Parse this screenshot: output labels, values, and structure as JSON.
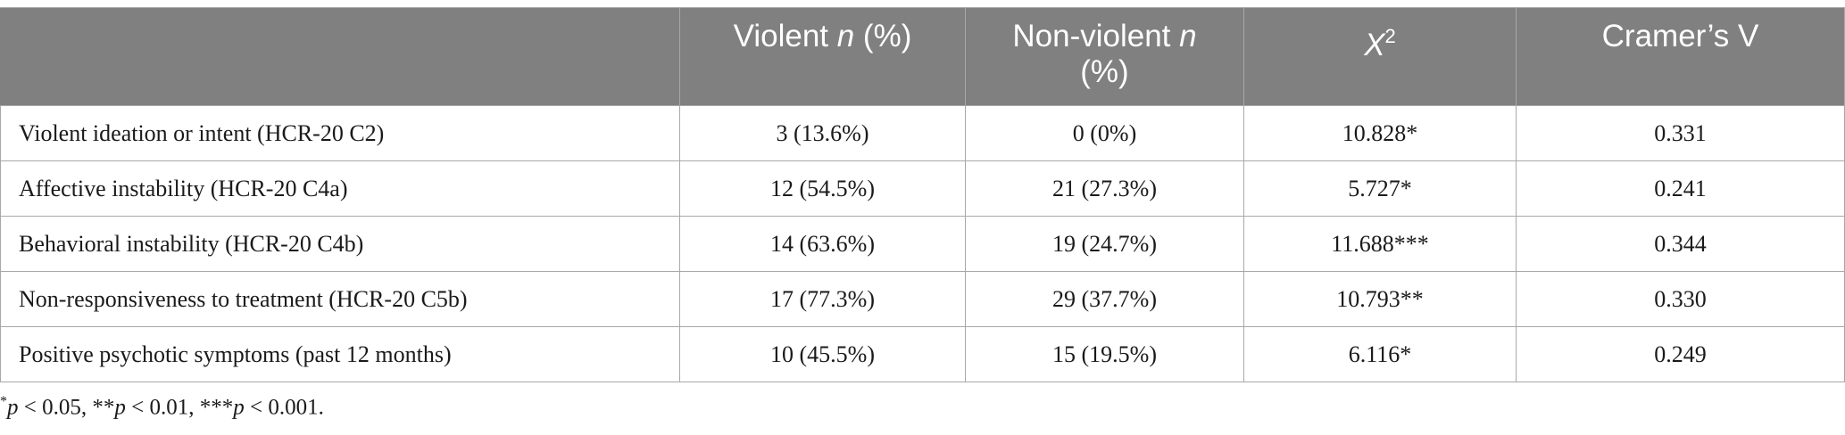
{
  "table": {
    "headers": {
      "variable": "",
      "violent_prefix": "Violent ",
      "violent_n": "n",
      "violent_suffix": " (%)",
      "nonviolent_prefix": "Non-violent ",
      "nonviolent_n": "n",
      "nonviolent_suffix": "(%)",
      "chi_symbol": "X",
      "chi_exponent": "2",
      "cramers": "Cramer’s V"
    },
    "rows": [
      {
        "label": "Violent ideation or intent (HCR-20 C2)",
        "violent": "3 (13.6%)",
        "nonviolent": "0 (0%)",
        "chi2": "10.828*",
        "cramers_v": "0.331"
      },
      {
        "label": "Affective instability (HCR-20 C4a)",
        "violent": "12 (54.5%)",
        "nonviolent": "21 (27.3%)",
        "chi2": "5.727*",
        "cramers_v": "0.241"
      },
      {
        "label": "Behavioral instability (HCR-20 C4b)",
        "violent": "14 (63.6%)",
        "nonviolent": "19 (24.7%)",
        "chi2": "11.688***",
        "cramers_v": "0.344"
      },
      {
        "label": "Non-responsiveness to treatment (HCR-20 C5b)",
        "violent": "17 (77.3%)",
        "nonviolent": "29 (37.7%)",
        "chi2": "10.793**",
        "cramers_v": "0.330"
      },
      {
        "label": "Positive psychotic symptoms (past 12 months)",
        "violent": "10 (45.5%)",
        "nonviolent": "15 (19.5%)",
        "chi2": "6.116*",
        "cramers_v": "0.249"
      }
    ]
  },
  "footnote": {
    "s1": "*",
    "p1": "p",
    "t1": " < 0.05, **",
    "p2": "p",
    "t2": " < 0.01, ***",
    "p3": "p",
    "t3": " < 0.001."
  }
}
